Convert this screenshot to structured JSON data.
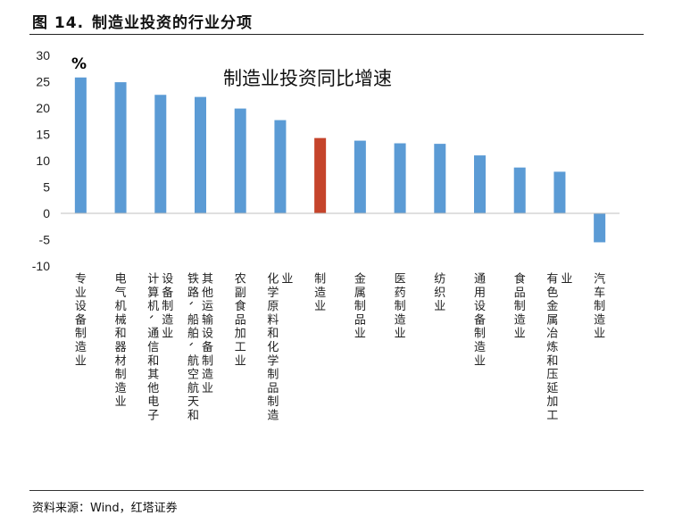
{
  "figure": {
    "label": "图",
    "number": "14.",
    "title": "制造业投资的行业分项"
  },
  "source": "资料来源：Wind，红塔证券",
  "chart_data": {
    "type": "bar",
    "title": "制造业投资同比增速",
    "unit": "%",
    "ylim": [
      -10,
      30
    ],
    "yticks": [
      -10,
      -5,
      0,
      5,
      10,
      15,
      20,
      25,
      30
    ],
    "grid": false,
    "legend": "none",
    "categories": [
      "专业设备制造业",
      "电气机械和器材制造业",
      "计算机、通信和其他电子设备制造业",
      "铁路、船舶、航空航天和其他运输设备制造业",
      "农副食品加工业",
      "化学原料和化学制品制造业",
      "制造业",
      "金属制品业",
      "医药制造业",
      "纺织业",
      "通用设备制造业",
      "食品制造业",
      "有色金属冶炼和压延加工业",
      "汽车制造业"
    ],
    "values": [
      25.8,
      24.9,
      22.5,
      22.1,
      19.9,
      17.7,
      14.3,
      13.8,
      13.3,
      13.2,
      11.0,
      8.7,
      7.9,
      -5.5
    ],
    "highlight_index": 6,
    "colors": {
      "bar": "#5b9bd5",
      "highlight": "#c5442b",
      "axis": "#bfbfbf",
      "text": "#222222"
    }
  }
}
